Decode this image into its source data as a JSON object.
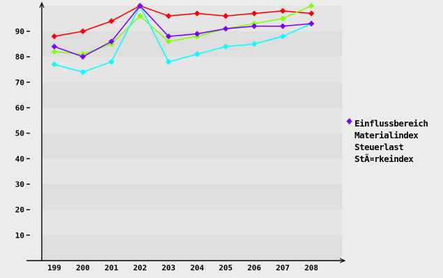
{
  "chart_data": {
    "type": "line",
    "title": "",
    "xlabel": "",
    "ylabel": "",
    "categories": [
      "199",
      "200",
      "201",
      "202",
      "203",
      "204",
      "205",
      "206",
      "207",
      "208"
    ],
    "series": [
      {
        "name": "Einflussbereich",
        "color": "#ff0000",
        "values": [
          88,
          90,
          94,
          100,
          96,
          97,
          96,
          97,
          98,
          97
        ]
      },
      {
        "name": "Materialindex",
        "color": "#80ff00",
        "values": [
          82,
          81,
          85,
          96,
          86,
          88,
          91,
          93,
          95,
          100
        ]
      },
      {
        "name": "Steuerlast",
        "color": "#00ffff",
        "values": [
          77,
          74,
          78,
          100,
          78,
          81,
          84,
          85,
          88,
          93
        ]
      },
      {
        "name": "StÃ¤rkeindex",
        "color": "#8000ff",
        "values": [
          84,
          80,
          86,
          100,
          88,
          89,
          91,
          92,
          92,
          93
        ]
      }
    ],
    "yticks": [
      90,
      80,
      70,
      60,
      50,
      40,
      30,
      20,
      10
    ],
    "ylim": [
      0,
      101
    ],
    "grid": "alternating-horizontal-bands",
    "legend_position": "right",
    "marker": "diamond"
  },
  "colors": {
    "page_background": "#ececec",
    "band_light": "#e5e5e5",
    "band_dark": "#dedede",
    "axis": "#000000",
    "label_text": "#000000"
  }
}
